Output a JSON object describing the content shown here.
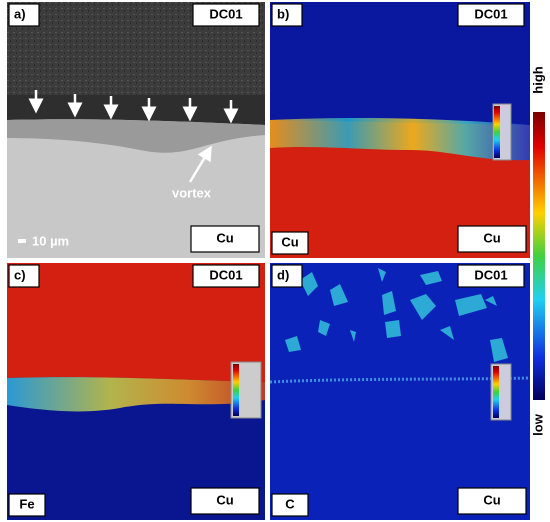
{
  "panels": [
    {
      "label": "a)",
      "material_top": "DC01",
      "material_bottom": "Cu",
      "annotation": "vortex",
      "scale_bar": "10 µm"
    },
    {
      "label": "b)",
      "material_top": "DC01",
      "material_bottom": "Cu",
      "element": "Cu"
    },
    {
      "label": "c)",
      "material_top": "DC01",
      "material_bottom": "Cu",
      "element": "Fe"
    },
    {
      "label": "d)",
      "material_top": "DC01",
      "material_bottom": "Cu",
      "element": "C"
    }
  ],
  "colorbar": {
    "high": "high",
    "low": "low"
  }
}
